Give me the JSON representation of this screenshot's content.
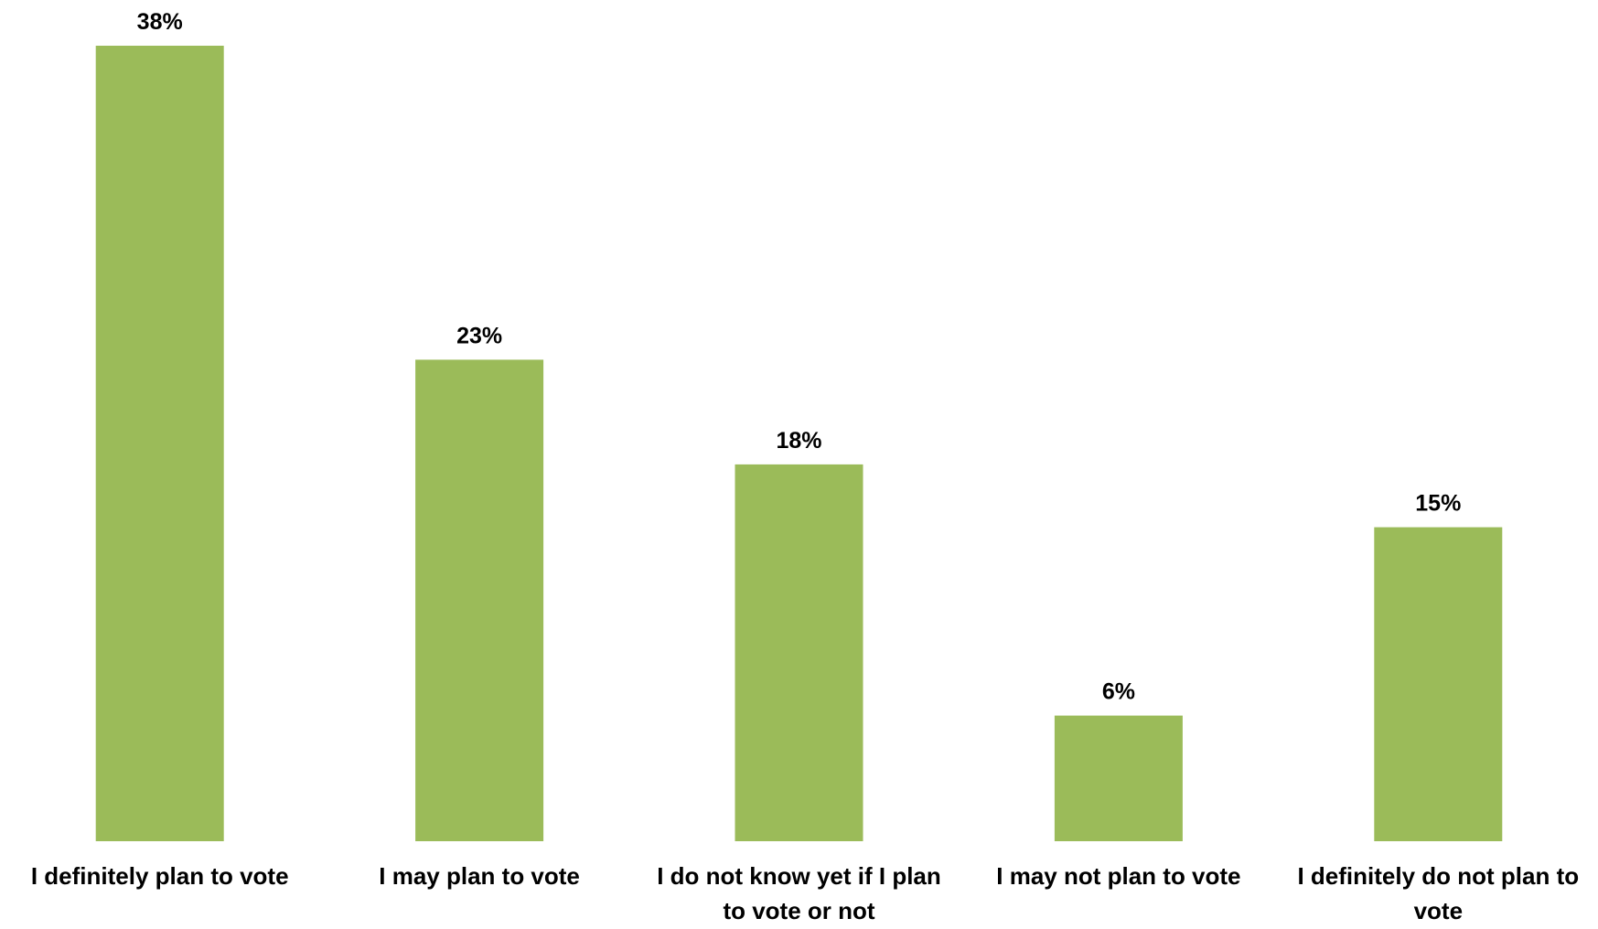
{
  "chart_data": {
    "type": "bar",
    "title": "",
    "xlabel": "",
    "ylabel": "",
    "categories": [
      [
        "I definitely plan to vote"
      ],
      [
        "I may plan to vote"
      ],
      [
        "I do not know yet if I plan",
        "to vote or not"
      ],
      [
        "I may not plan to vote"
      ],
      [
        "I definitely do not plan to",
        "vote"
      ]
    ],
    "values": [
      38,
      23,
      18,
      6,
      15
    ],
    "value_labels": [
      "38%",
      "23%",
      "18%",
      "6%",
      "15%"
    ],
    "ylim": [
      0,
      38
    ],
    "grid": false,
    "legend": "none",
    "bar_color": "#9BBB59"
  }
}
